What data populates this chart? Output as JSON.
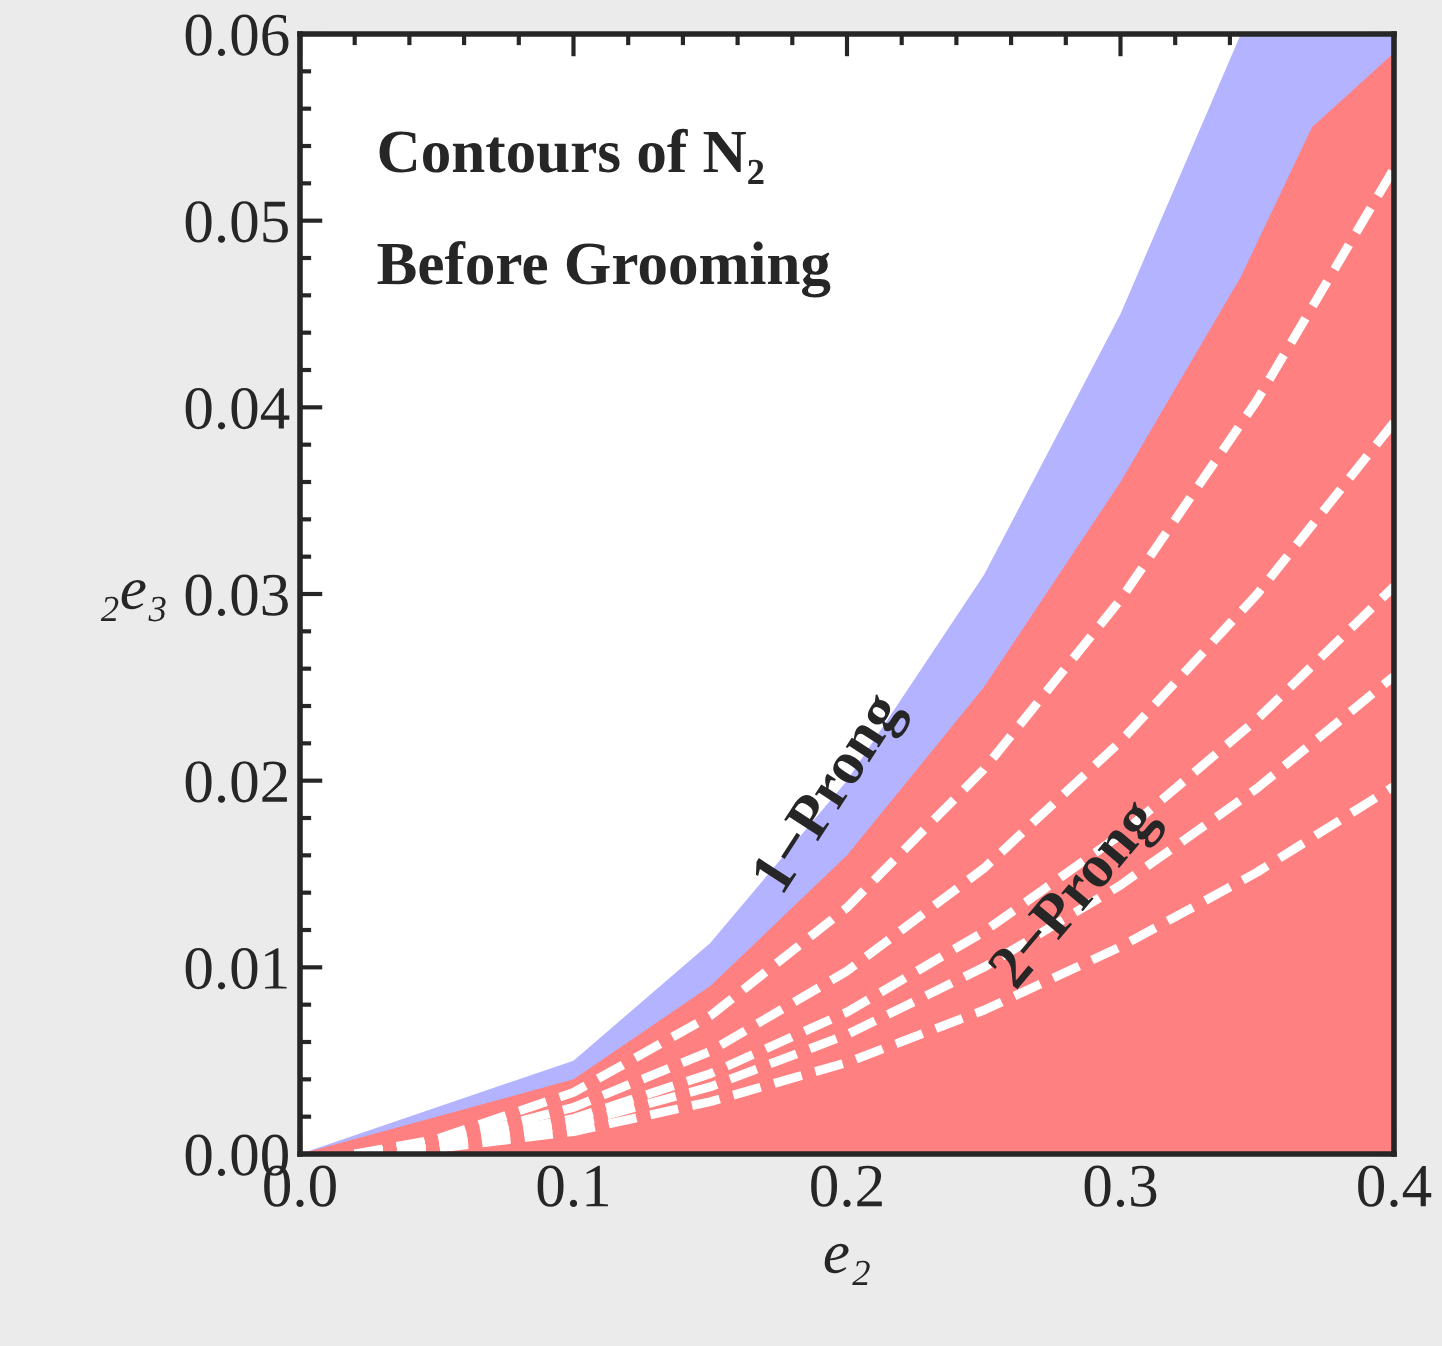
{
  "chart_data": {
    "type": "area",
    "xlabel": "e₂",
    "ylabel": "₂e₃",
    "annotations": [
      "Contours of N₂",
      "Before Grooming",
      "1−Prong",
      "2−Prong"
    ],
    "xlim": [
      0.0,
      0.4
    ],
    "ylim": [
      0.0,
      0.06
    ],
    "xticks": [
      {
        "value": 0.0,
        "label": "0.0"
      },
      0.1,
      0.2,
      0.3,
      0.4
    ],
    "yticks": [
      {
        "value": 0.0,
        "label": "0.00"
      },
      {
        "value": 0.01,
        "label": "0.01"
      },
      {
        "value": 0.02,
        "label": "0.02"
      },
      {
        "value": 0.03,
        "label": "0.03"
      },
      {
        "value": 0.04,
        "label": "0.04"
      },
      {
        "value": 0.05,
        "label": "0.05"
      },
      {
        "value": 0.06,
        "label": "0.06"
      }
    ],
    "grid": false,
    "legend": false,
    "series": [
      {
        "color": "#b3b3ff",
        "x": [
          0,
          0.1,
          0.15,
          0.2,
          0.25,
          0.3,
          0.344,
          0.385,
          0.4
        ],
        "values": [
          0,
          0.005,
          0.0113,
          0.02,
          0.031,
          0.045,
          0.06,
          0.06,
          0.06
        ]
      },
      {
        "color": "#ff8080",
        "x": [
          0,
          0.1,
          0.15,
          0.2,
          0.25,
          0.3,
          0.344,
          0.37,
          0.4
        ],
        "values": [
          0,
          0.004,
          0.009,
          0.016,
          0.025,
          0.036,
          0.047,
          0.055,
          0.059
        ]
      },
      {
        "type": "line",
        "color": "#ffffff",
        "line_style": "dashed",
        "x": [
          0.02,
          0.05,
          0.1,
          0.15,
          0.2,
          0.25,
          0.3,
          0.35,
          0.4
        ],
        "values": [
          0,
          0.0008,
          0.0033,
          0.0074,
          0.0132,
          0.0206,
          0.0297,
          0.0404,
          0.0528
        ]
      },
      {
        "type": "line",
        "color": "#ffffff",
        "line_style": "dashed",
        "x": [
          0.02,
          0.05,
          0.1,
          0.15,
          0.2,
          0.25,
          0.3,
          0.35,
          0.4
        ],
        "values": [
          0,
          0.0006,
          0.0025,
          0.0055,
          0.0098,
          0.0153,
          0.0221,
          0.03,
          0.0392
        ]
      },
      {
        "type": "line",
        "color": "#ffffff",
        "line_style": "dashed",
        "x": [
          0.02,
          0.05,
          0.1,
          0.15,
          0.2,
          0.25,
          0.3,
          0.35,
          0.4
        ],
        "values": [
          0,
          0.0005,
          0.0019,
          0.0043,
          0.0076,
          0.0119,
          0.0171,
          0.0233,
          0.0304
        ]
      },
      {
        "type": "line",
        "color": "#ffffff",
        "line_style": "dashed",
        "x": [
          0.02,
          0.05,
          0.1,
          0.15,
          0.2,
          0.25,
          0.3,
          0.35,
          0.4
        ],
        "values": [
          0,
          0.0004,
          0.0016,
          0.0036,
          0.0064,
          0.01,
          0.0144,
          0.0196,
          0.0256
        ]
      },
      {
        "type": "line",
        "color": "#ffffff",
        "line_style": "dashed",
        "x": [
          0.02,
          0.05,
          0.1,
          0.15,
          0.2,
          0.25,
          0.3,
          0.35,
          0.4
        ],
        "values": [
          0,
          0.0003,
          0.0012,
          0.0028,
          0.0049,
          0.0077,
          0.0111,
          0.0151,
          0.0197
        ]
      }
    ]
  }
}
